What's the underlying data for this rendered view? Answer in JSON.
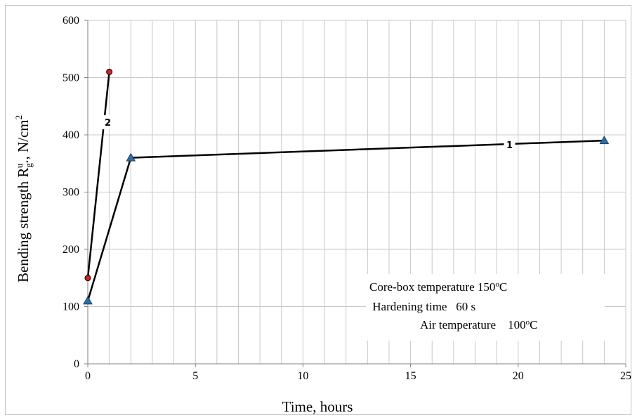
{
  "chart_data": {
    "type": "line",
    "xlabel": "Time, hours",
    "ylabel": {
      "main": "Bending strength R",
      "sub": "g",
      "sup": "u",
      "suffix": "., N/cm",
      "sup2": "2"
    },
    "xlim": [
      0,
      25
    ],
    "ylim": [
      0,
      600
    ],
    "xticks": [
      0,
      5,
      10,
      15,
      20,
      25
    ],
    "yticks": [
      0,
      100,
      200,
      300,
      400,
      500,
      600
    ],
    "x_minor_step": 1,
    "y_minor_step": 100,
    "grid": true,
    "series": [
      {
        "label": "1",
        "marker": "triangle",
        "marker_color": "#2e6ea8",
        "points": [
          {
            "x": 0,
            "y": 110
          },
          {
            "x": 2,
            "y": 360
          },
          {
            "x": 24,
            "y": 390
          }
        ],
        "label_at": {
          "x": 19.6,
          "y": 383
        }
      },
      {
        "label": "2",
        "marker": "circle",
        "marker_color": "#d42020",
        "points": [
          {
            "x": 0,
            "y": 150
          },
          {
            "x": 1,
            "y": 510
          }
        ],
        "label_at": {
          "x": 0.93,
          "y": 422
        }
      }
    ],
    "annotation": {
      "lines": [
        {
          "text": "Core-box temperature 150",
          "unit": "C"
        },
        {
          "text": " Hardening time   60 s",
          "unit": ""
        },
        {
          "text": "Air temperature    100",
          "unit": "C"
        }
      ],
      "degree_mark": "o"
    }
  }
}
